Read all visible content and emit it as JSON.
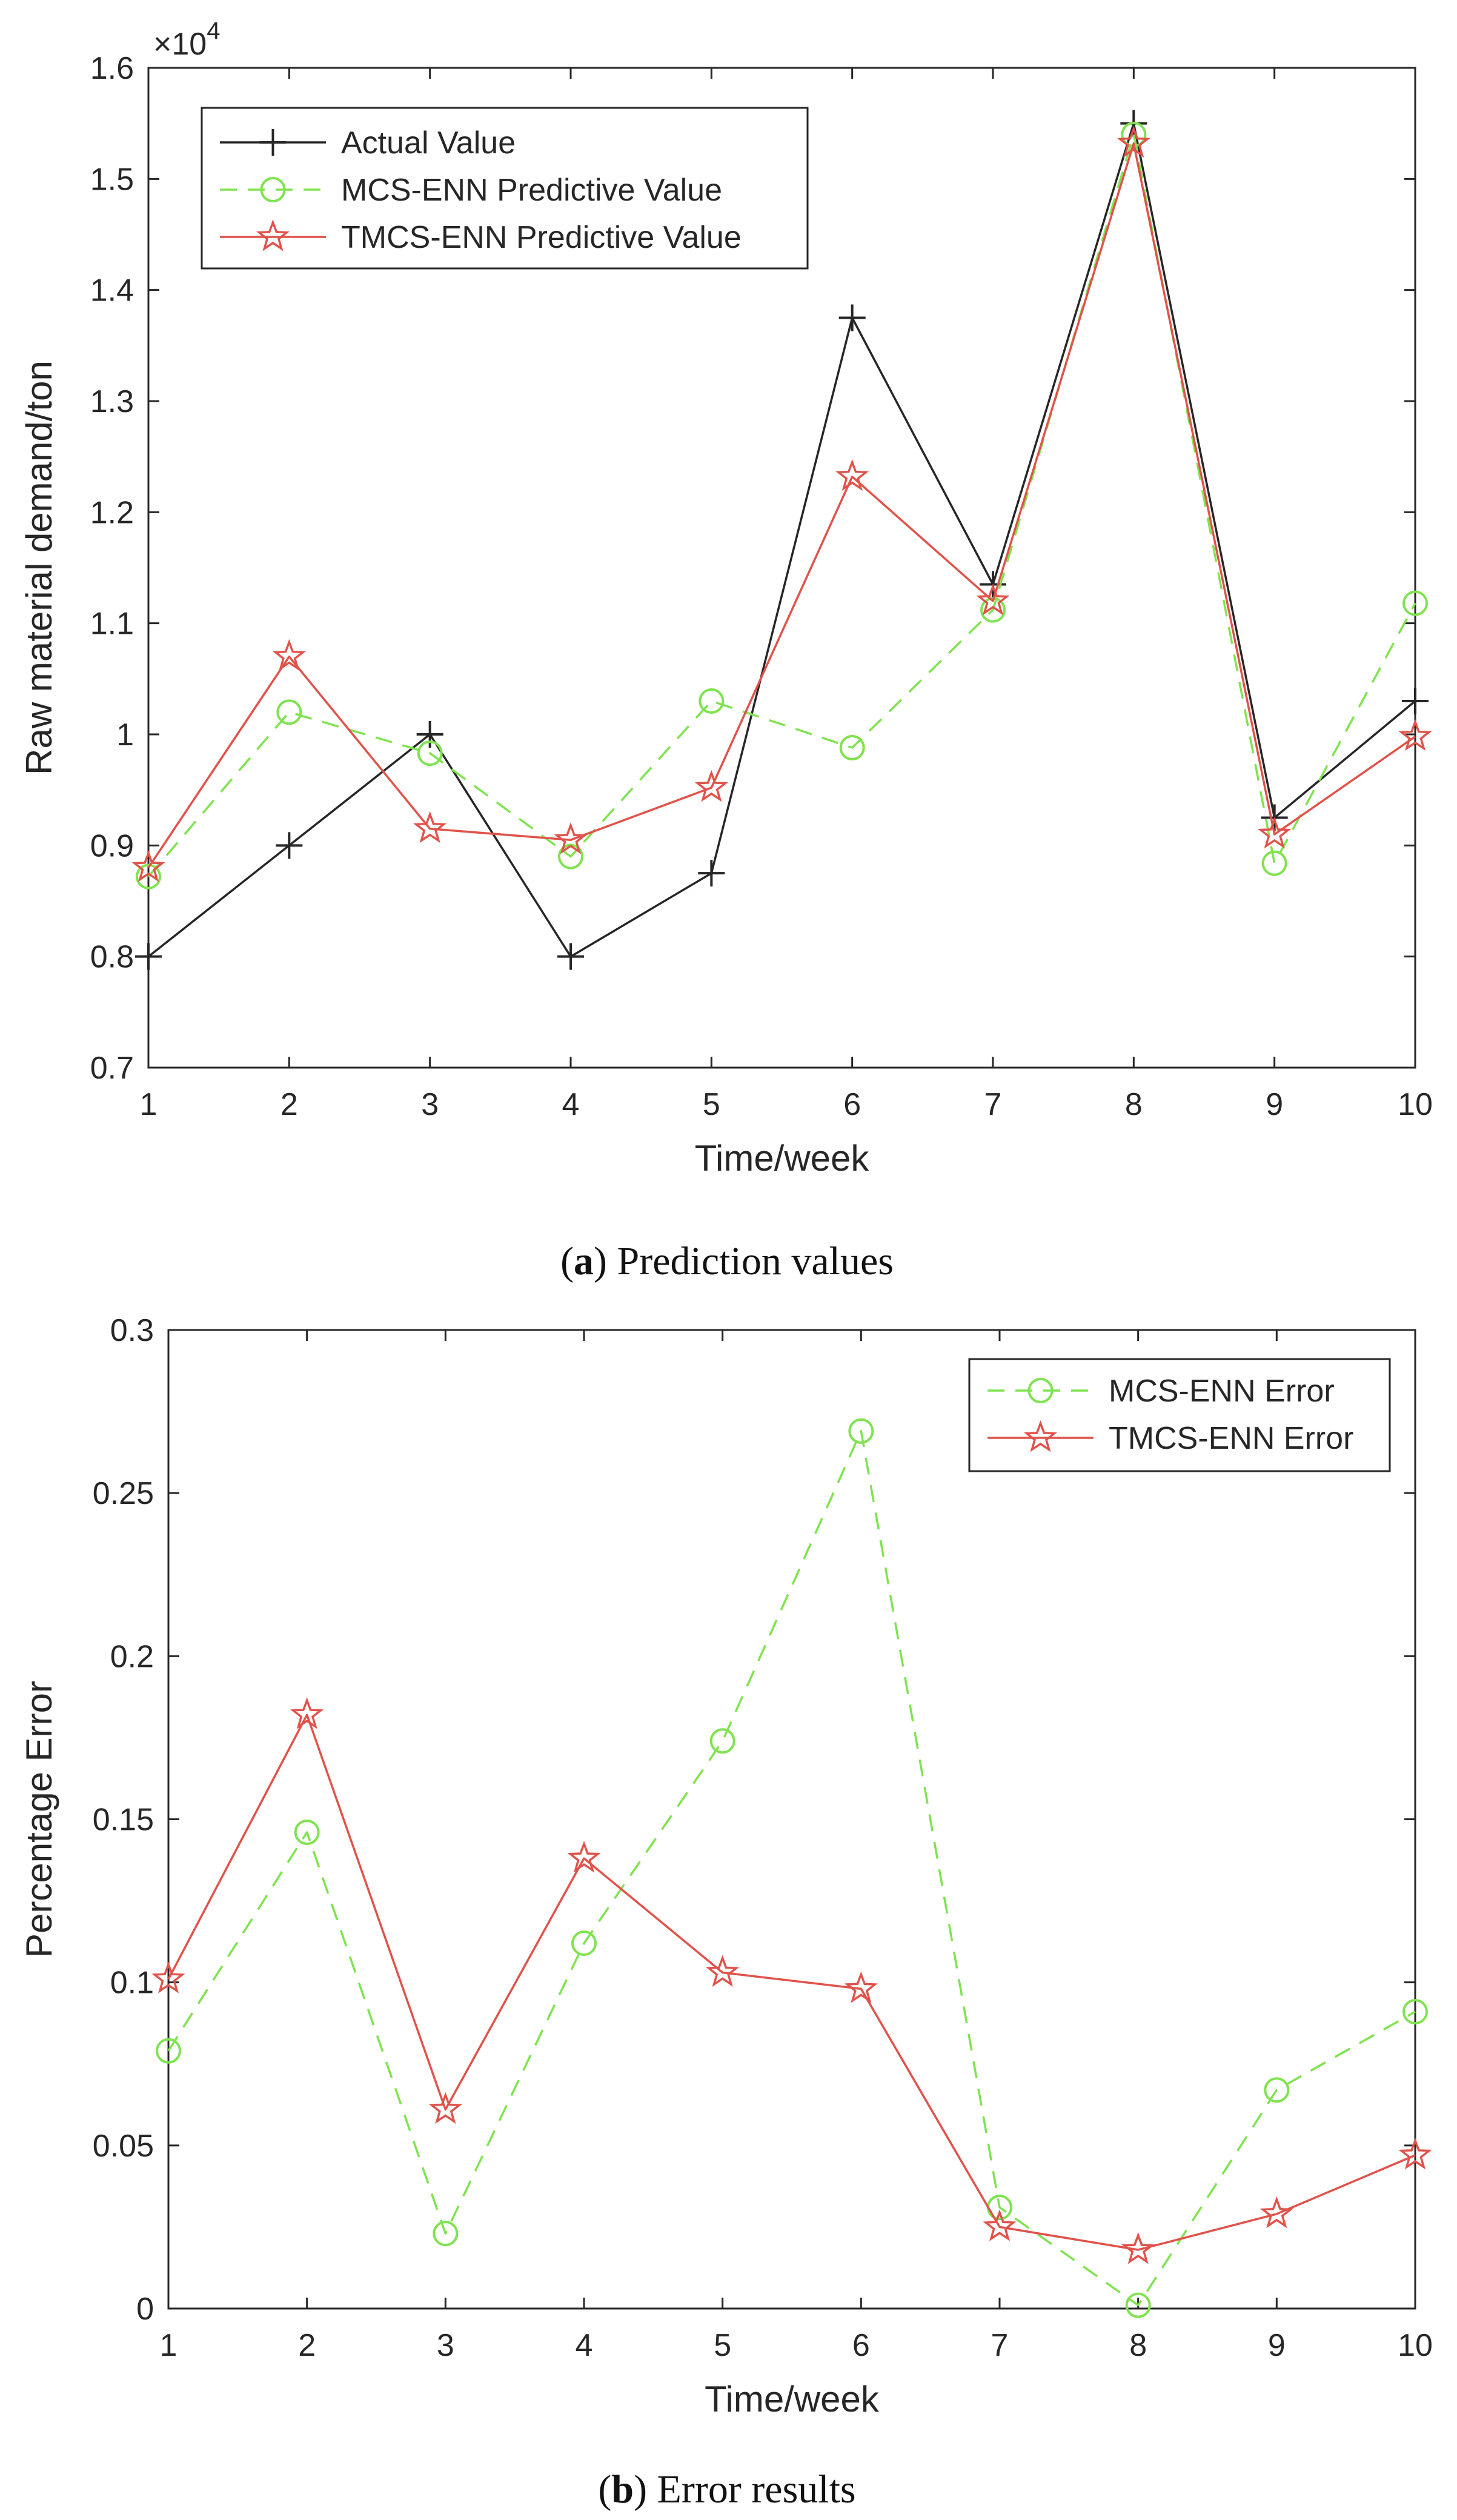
{
  "chart_data": [
    {
      "id": "a",
      "type": "line",
      "caption_letter": "a",
      "caption_open": "(",
      "caption_close": ")",
      "caption_text": " Prediction values",
      "xlabel": "Time/week",
      "ylabel": "Raw material demand/ton",
      "multiplier_base": "×10",
      "multiplier_exp": "4",
      "x": [
        1,
        2,
        3,
        4,
        5,
        6,
        7,
        8,
        9,
        10
      ],
      "xlim": [
        1,
        10
      ],
      "ylim": [
        0.7,
        1.6
      ],
      "yticks": [
        0.7,
        0.8,
        0.9,
        1.0,
        1.1,
        1.2,
        1.3,
        1.4,
        1.5,
        1.6
      ],
      "ytick_labels": [
        "0.7",
        "0.8",
        "0.9",
        "1",
        "1.1",
        "1.2",
        "1.3",
        "1.4",
        "1.5",
        "1.6"
      ],
      "legend_position": "top-left",
      "series": [
        {
          "name": "Actual Value",
          "color": "#262626",
          "dash": "solid",
          "marker": "plus",
          "values": [
            0.8,
            0.9,
            1.0,
            0.8,
            0.875,
            1.375,
            1.135,
            1.55,
            0.925,
            1.03
          ]
        },
        {
          "name": "MCS-ENN Predictive Value",
          "color": "#7fe34f",
          "dash": "dashed",
          "marker": "circle",
          "values": [
            0.872,
            1.02,
            0.983,
            0.89,
            1.03,
            0.988,
            1.112,
            1.54,
            0.884,
            1.118
          ]
        },
        {
          "name": "TMCS-ENN Predictive Value",
          "color": "#e0524a",
          "dash": "solid",
          "marker": "star",
          "values": [
            0.88,
            1.07,
            0.915,
            0.905,
            0.952,
            1.232,
            1.12,
            1.532,
            0.91,
            0.998
          ]
        }
      ]
    },
    {
      "id": "b",
      "type": "line",
      "caption_letter": "b",
      "caption_open": "(",
      "caption_close": ")",
      "caption_text": " Error results",
      "xlabel": "Time/week",
      "ylabel": "Percentage Error",
      "x": [
        1,
        2,
        3,
        4,
        5,
        6,
        7,
        8,
        9,
        10
      ],
      "xlim": [
        1,
        10
      ],
      "ylim": [
        0,
        0.3
      ],
      "yticks": [
        0,
        0.05,
        0.1,
        0.15,
        0.2,
        0.25,
        0.3
      ],
      "ytick_labels": [
        "0",
        "0.05",
        "0.1",
        "0.15",
        "0.2",
        "0.25",
        "0.3"
      ],
      "legend_position": "top-right",
      "series": [
        {
          "name": "MCS-ENN Error",
          "color": "#7fe34f",
          "dash": "dashed",
          "marker": "circle",
          "values": [
            0.079,
            0.146,
            0.023,
            0.112,
            0.174,
            0.269,
            0.031,
            0.001,
            0.067,
            0.091
          ]
        },
        {
          "name": "TMCS-ENN Error",
          "color": "#e0524a",
          "dash": "solid",
          "marker": "star",
          "values": [
            0.101,
            0.182,
            0.061,
            0.138,
            0.103,
            0.098,
            0.025,
            0.018,
            0.029,
            0.047
          ]
        }
      ]
    }
  ]
}
